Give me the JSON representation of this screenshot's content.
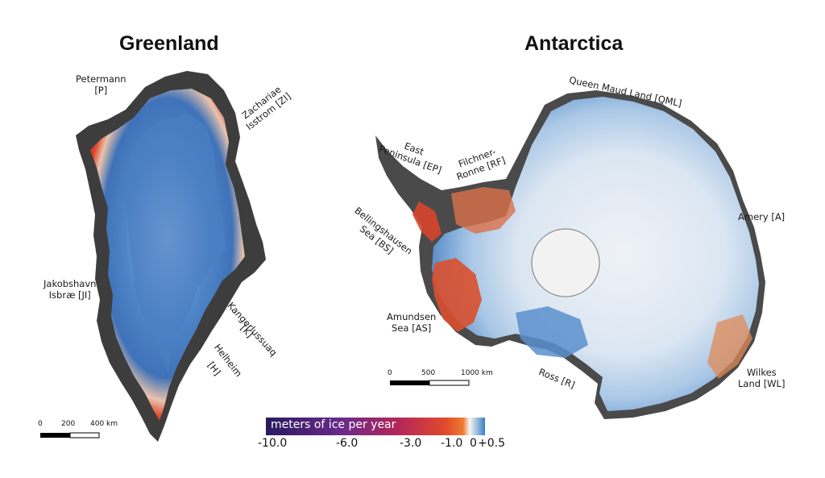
{
  "titles": {
    "greenland": "Greenland",
    "antarctica": "Antarctica"
  },
  "greenland_labels": {
    "petermann": [
      "Petermann",
      "[P]"
    ],
    "zachariae": [
      "Zachariae",
      "Isstrom [ZI]"
    ],
    "jakobshavn": [
      "Jakobshavn",
      "Isbræ [JI]"
    ],
    "kangerlussuaq": "Kangerlussuaq",
    "kangerlussuaq_code": "[K]",
    "helheim": "Helheim",
    "helheim_code": "[H]"
  },
  "antarctica_labels": {
    "qml": "Queen Maud Land [QML]",
    "ep": [
      "East",
      "Peninsula [EP]"
    ],
    "rf": [
      "Filchner-",
      "Ronne [RF]"
    ],
    "bs": [
      "Bellingshausen",
      "Sea [BS]"
    ],
    "amery": "Amery [A]",
    "as": [
      "Amundsen",
      "Sea [AS]"
    ],
    "ross": "Ross [R]",
    "wl": [
      "Wilkes",
      "Land [WL]"
    ]
  },
  "scalebars": {
    "greenland": {
      "ticks": [
        "0",
        "200",
        "400 km"
      ]
    },
    "antarctica": {
      "ticks": [
        "0",
        "500",
        "1000 km"
      ]
    }
  },
  "colorbar": {
    "title": "meters of ice per year",
    "ticks": [
      "-10.0",
      "-6.0",
      "-3.0",
      "-1.0",
      "0",
      "+0.5"
    ],
    "colors": {
      "most_negative": "#2a1a5e",
      "mid_negative": "#b3265a",
      "near_zero": "#f07b2f",
      "zero": "#f5f5f5",
      "positive": "#3a7fc1"
    }
  }
}
